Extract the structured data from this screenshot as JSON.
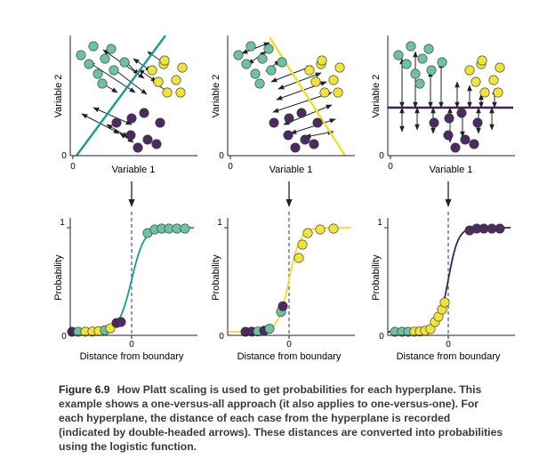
{
  "colors": {
    "teal": "#6cc3a3",
    "yellow": "#f3e23a",
    "purple": "#4e2a63",
    "teal_line": "#1a9a96",
    "yellow_line": "#f1dc26",
    "purple_line": "#3e1f58",
    "axis": "#222222"
  },
  "top_panels": {
    "xlabel": "Variable 1",
    "ylabel": "Variable 2",
    "origin_tick": "0"
  },
  "bottom_panels": {
    "xlabel": "Distance from boundary",
    "ylabel": "Probability",
    "tick_zero": "0",
    "tick_one": "1"
  },
  "caption": {
    "label": "Figure 6.9",
    "text": "How Platt scaling is used to get probabilities for each hyperplane. This example shows a one-versus-all approach (it also applies to one-versus-one). For each hyperplane, the distance of each case from the hyperplane is recorded (indicated by double-headed arrows). These distances are converted into probabilities using the logistic function."
  },
  "chart_data": [
    {
      "type": "scatter",
      "panel": "teal vs rest",
      "hyperplane": "diagonal",
      "classes": [
        "teal",
        "yellow",
        "purple"
      ]
    },
    {
      "type": "scatter",
      "panel": "yellow vs rest",
      "hyperplane": "diagonal",
      "classes": [
        "teal",
        "yellow",
        "purple"
      ]
    },
    {
      "type": "scatter",
      "panel": "purple vs rest",
      "hyperplane": "horizontal",
      "classes": [
        "teal",
        "yellow",
        "purple"
      ]
    },
    {
      "type": "line",
      "panel": "teal logistic",
      "xlabel": "Distance from boundary",
      "ylabel": "Probability",
      "ylim": [
        0,
        1
      ],
      "positive_class": "teal"
    },
    {
      "type": "line",
      "panel": "yellow logistic",
      "xlabel": "Distance from boundary",
      "ylabel": "Probability",
      "ylim": [
        0,
        1
      ],
      "positive_class": "yellow"
    },
    {
      "type": "line",
      "panel": "purple logistic",
      "xlabel": "Distance from boundary",
      "ylabel": "Probability",
      "ylim": [
        0,
        1
      ],
      "positive_class": "purple"
    }
  ]
}
